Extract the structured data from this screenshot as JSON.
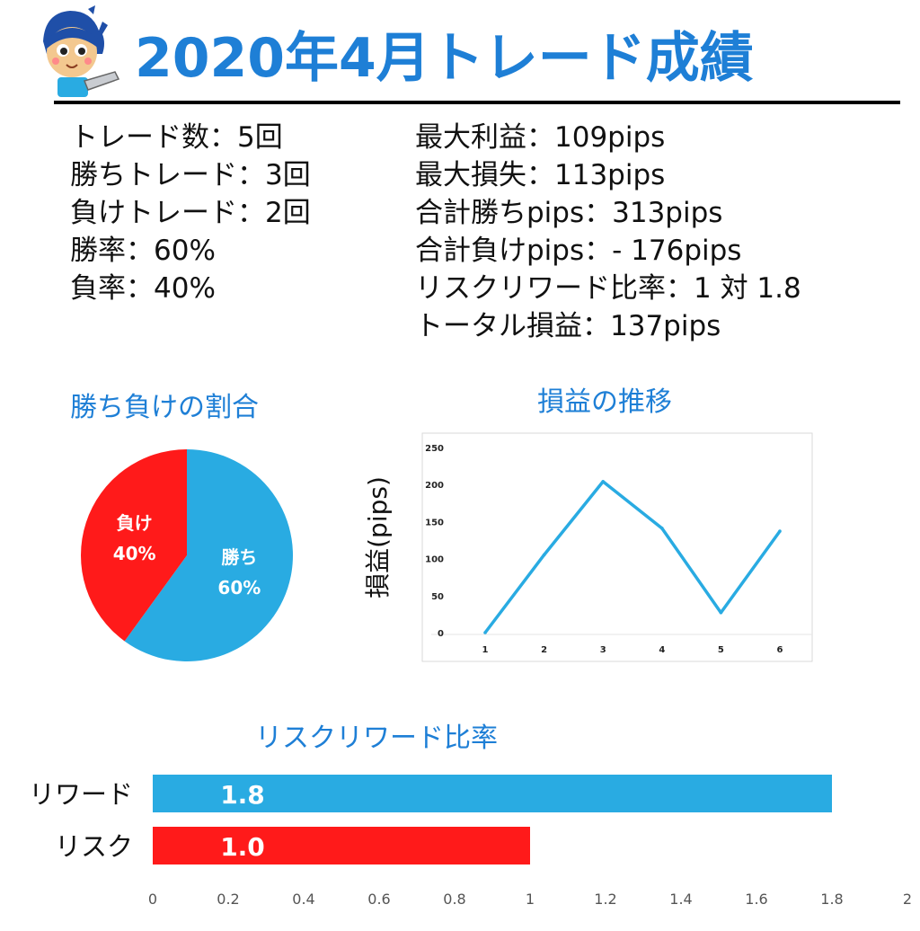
{
  "title": "2020年4月トレード成績",
  "stats_left": [
    "トレード数：5回",
    "勝ちトレード：3回",
    "負けトレード：2回",
    "勝率：60%",
    "負率：40%"
  ],
  "stats_right": [
    "最大利益：109pips",
    "最大損失：113pips",
    "合計勝ちpips：313pips",
    "合計負けpips：- 176pips",
    "リスクリワード比率：1 対 1.8",
    "トータル損益：137pips"
  ],
  "colors": {
    "accent": "#1e7fd6",
    "win": "#29abe2",
    "loss": "#ff1a1a"
  },
  "chart_data": [
    {
      "type": "pie",
      "title": "勝ち負けの割合",
      "slices": [
        {
          "label": "勝ち",
          "value": 60,
          "value_label": "60%",
          "color": "#29abe2"
        },
        {
          "label": "負け",
          "value": 40,
          "value_label": "40%",
          "color": "#ff1a1a"
        }
      ]
    },
    {
      "type": "line",
      "title": "損益の推移",
      "ylabel": "損益(pips)",
      "xlabel": "",
      "x": [
        1,
        2,
        3,
        4,
        5,
        6
      ],
      "y": [
        0,
        105,
        204,
        141,
        27,
        137
      ],
      "ylim": [
        0,
        250
      ],
      "yticks": [
        0,
        50,
        100,
        150,
        200,
        250
      ],
      "xticks": [
        "1",
        "2",
        "3",
        "4",
        "5",
        "6"
      ],
      "color": "#29abe2",
      "grid": false
    },
    {
      "type": "bar",
      "orientation": "horizontal",
      "title": "リスクリワード比率",
      "categories": [
        "リワード",
        "リスク"
      ],
      "values": [
        1.8,
        1.0
      ],
      "value_labels": [
        "1.8",
        "1.0"
      ],
      "colors": [
        "#29abe2",
        "#ff1a1a"
      ],
      "xlim": [
        0,
        2
      ],
      "xticks": [
        "0",
        "0.2",
        "0.4",
        "0.6",
        "0.8",
        "1",
        "1.2",
        "1.4",
        "1.6",
        "1.8",
        "2"
      ]
    }
  ]
}
